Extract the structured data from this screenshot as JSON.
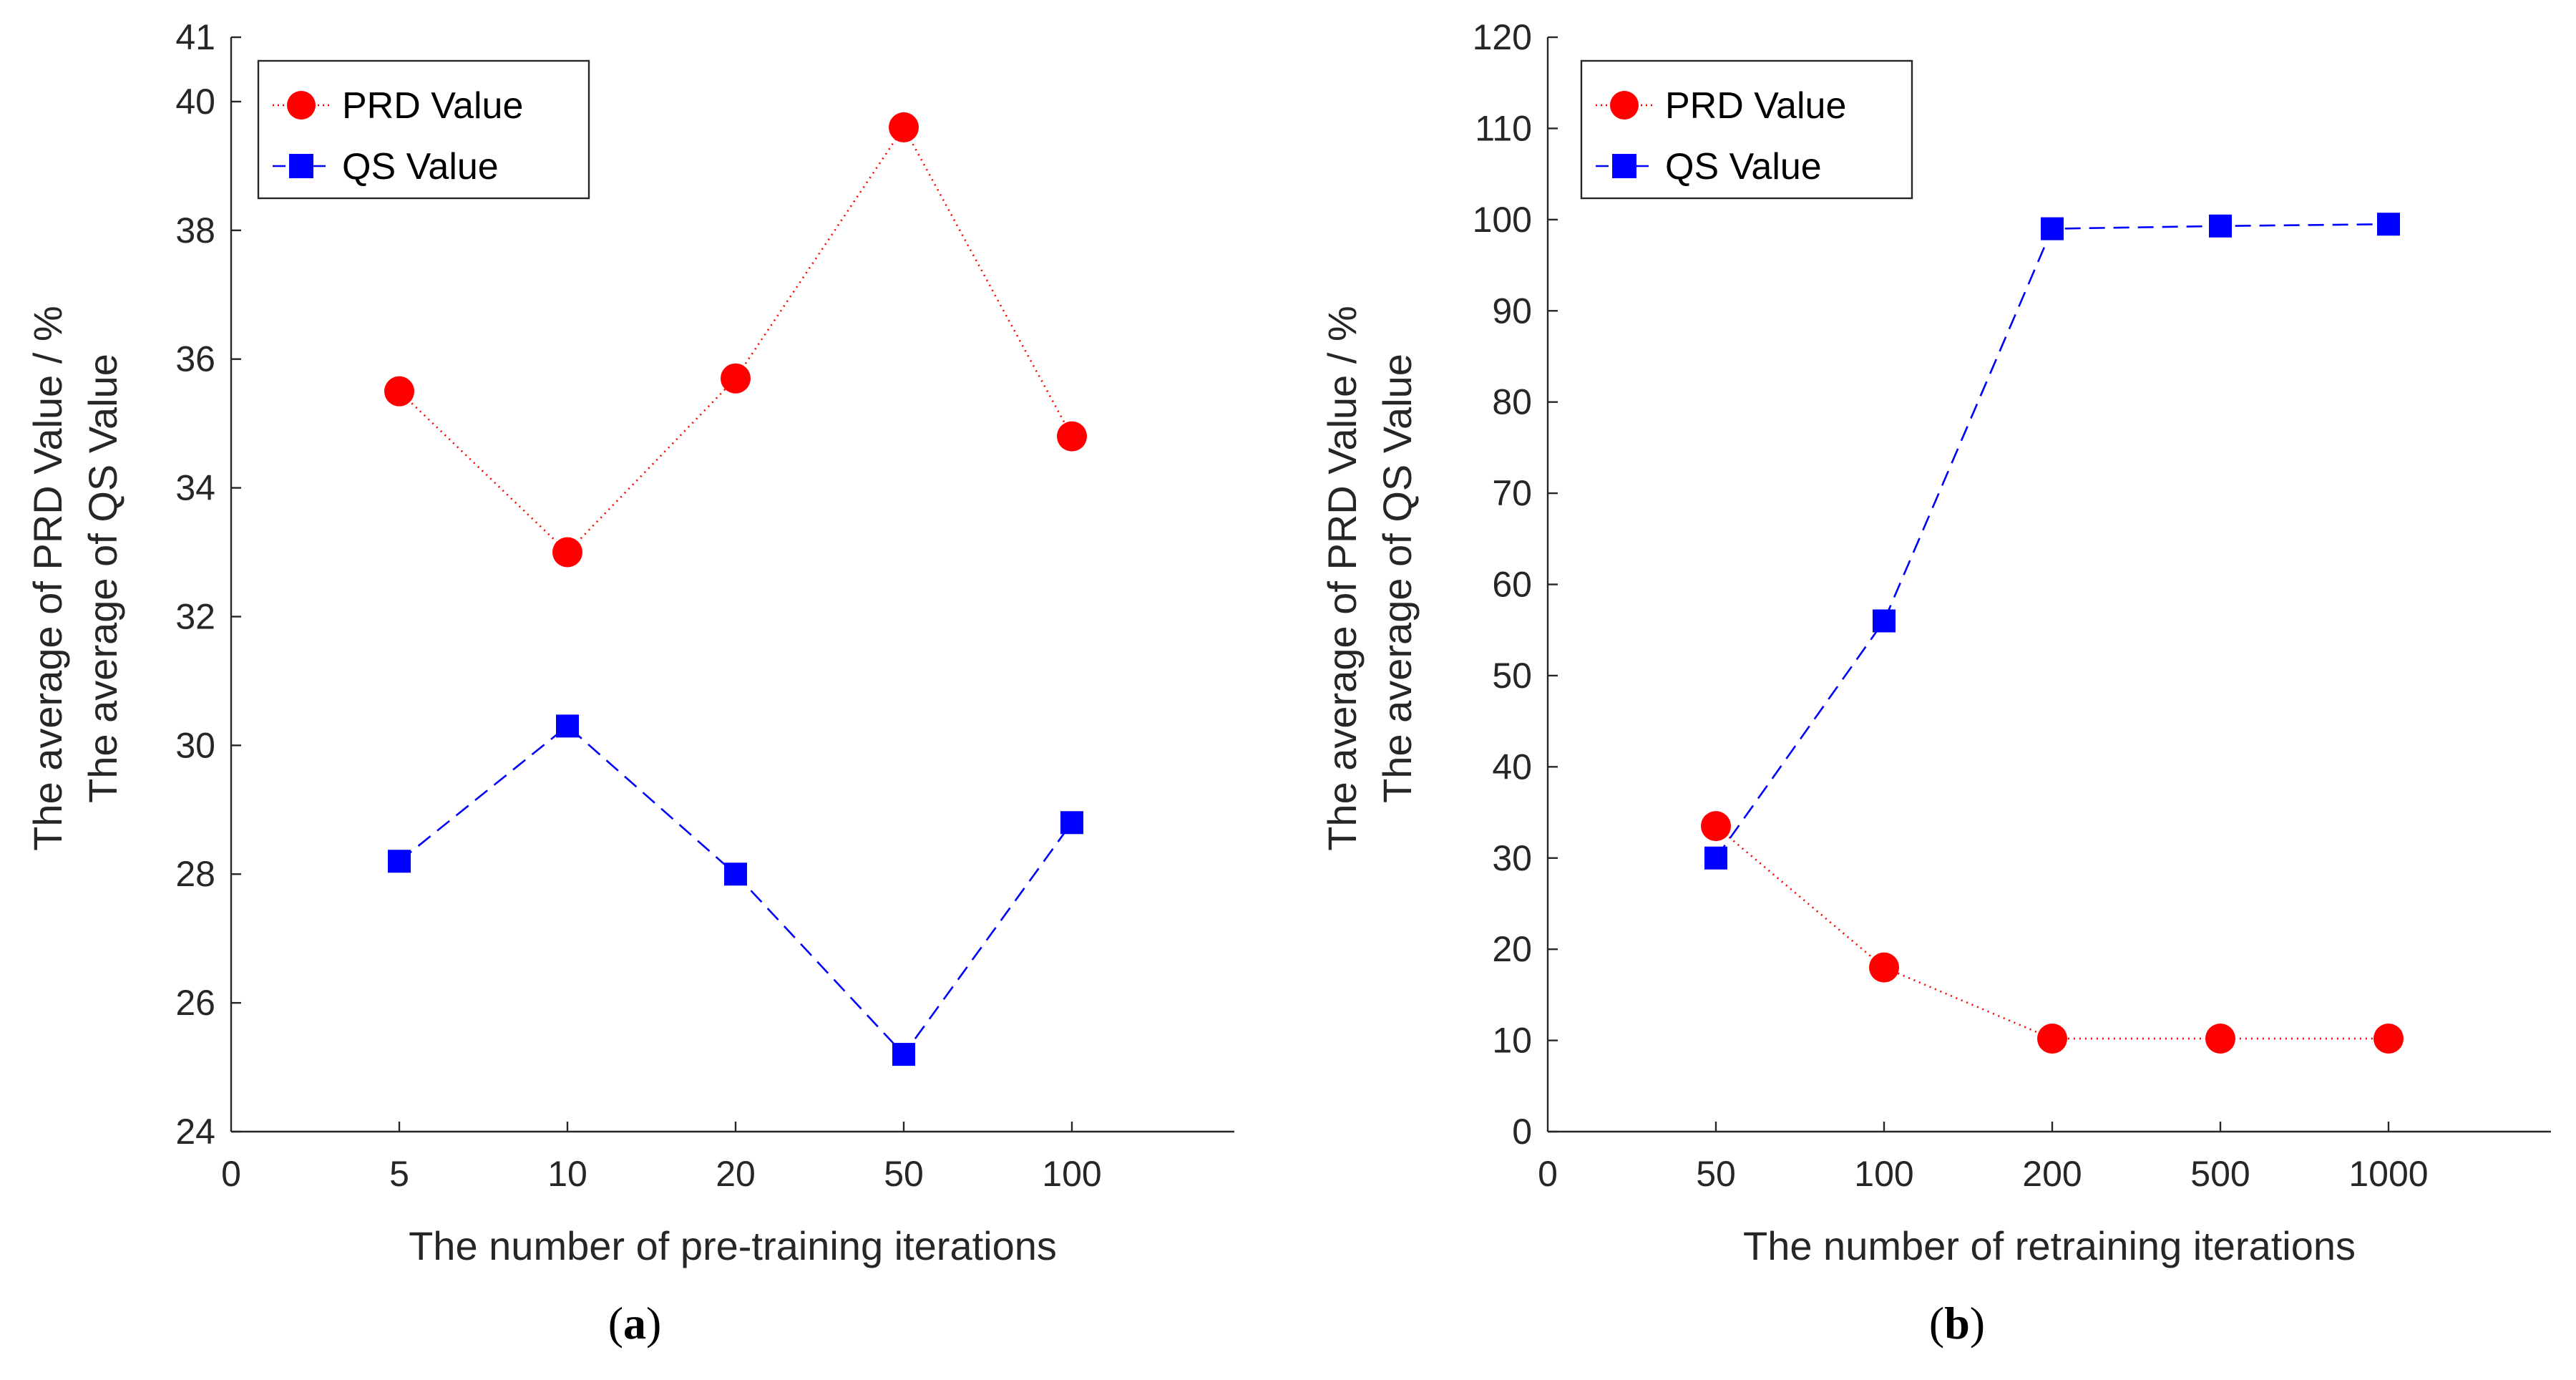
{
  "chart_data": [
    {
      "type": "line",
      "panel_label": "a",
      "xlabel": "The number of pre-training iterations",
      "ylabel": [
        "The average of PRD Value / %",
        "The average of QS Value"
      ],
      "x_origin_label": "0",
      "categories": [
        "5",
        "10",
        "20",
        "50",
        "100"
      ],
      "ylim": [
        24,
        41
      ],
      "yticks": [
        24,
        26,
        28,
        30,
        32,
        34,
        36,
        38,
        40,
        41
      ],
      "legend_position": "top-left",
      "series": [
        {
          "name": "PRD Value",
          "color": "#ff0000",
          "marker": "circle",
          "line": "dotted",
          "values": [
            35.5,
            33.0,
            35.7,
            39.6,
            34.8
          ]
        },
        {
          "name": "QS Value",
          "color": "#0000ff",
          "marker": "square",
          "line": "dashed",
          "values": [
            28.2,
            30.3,
            28.0,
            25.2,
            28.8
          ]
        }
      ]
    },
    {
      "type": "line",
      "panel_label": "b",
      "xlabel": "The number of retraining iterations",
      "ylabel": [
        "The average of PRD Value / %",
        "The average of QS Value"
      ],
      "x_origin_label": "0",
      "categories": [
        "50",
        "100",
        "200",
        "500",
        "1000"
      ],
      "ylim": [
        0,
        120
      ],
      "yticks": [
        0,
        10,
        20,
        30,
        40,
        50,
        60,
        70,
        80,
        90,
        100,
        110,
        120
      ],
      "legend_position": "top-left",
      "series": [
        {
          "name": "PRD Value",
          "color": "#ff0000",
          "marker": "circle",
          "line": "dotted",
          "values": [
            33.5,
            18.0,
            10.2,
            10.2,
            10.2
          ]
        },
        {
          "name": "QS Value",
          "color": "#0000ff",
          "marker": "square",
          "line": "dashed",
          "values": [
            30.0,
            56.0,
            99.0,
            99.3,
            99.5
          ]
        }
      ]
    }
  ]
}
